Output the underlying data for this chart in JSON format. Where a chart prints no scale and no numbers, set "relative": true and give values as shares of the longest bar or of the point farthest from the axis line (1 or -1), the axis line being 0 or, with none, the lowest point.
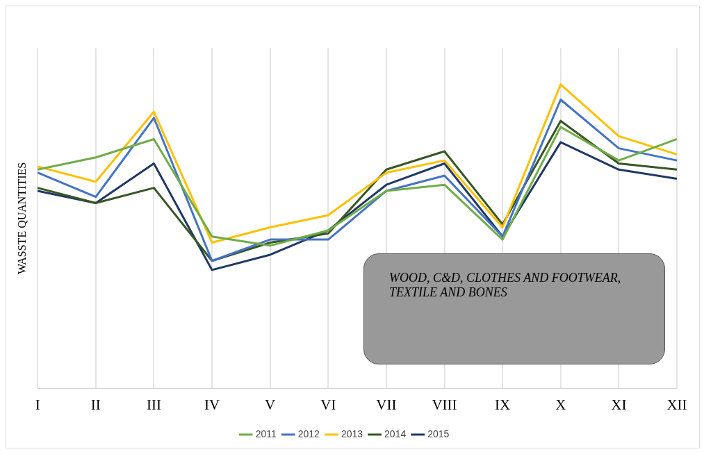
{
  "chart_data": {
    "type": "line",
    "relative": true,
    "ylabel": "WASSTE QUANTITIES",
    "categories": [
      "I",
      "II",
      "III",
      "IV",
      "V",
      "VI",
      "VII",
      "VIII",
      "IX",
      "X",
      "XI",
      "XII"
    ],
    "series": [
      {
        "name": "2011",
        "color": "#70ad47",
        "values": [
          0.72,
          0.76,
          0.82,
          0.5,
          0.47,
          0.52,
          0.65,
          0.67,
          0.49,
          0.86,
          0.75,
          0.82
        ]
      },
      {
        "name": "2012",
        "color": "#4472c4",
        "values": [
          0.71,
          0.63,
          0.89,
          0.42,
          0.49,
          0.49,
          0.65,
          0.7,
          0.5,
          0.95,
          0.79,
          0.75
        ]
      },
      {
        "name": "2013",
        "color": "#ffc000",
        "values": [
          0.73,
          0.68,
          0.91,
          0.48,
          0.53,
          0.57,
          0.71,
          0.75,
          0.53,
          1,
          0.83,
          0.77
        ]
      },
      {
        "name": "2014",
        "color": "#375623",
        "values": [
          0.66,
          0.61,
          0.66,
          0.42,
          0.48,
          0.51,
          0.72,
          0.78,
          0.54,
          0.88,
          0.74,
          0.72
        ]
      },
      {
        "name": "2015",
        "color": "#203864",
        "values": [
          0.65,
          0.61,
          0.74,
          0.39,
          0.44,
          0.52,
          0.67,
          0.74,
          0.5,
          0.81,
          0.72,
          0.69
        ]
      }
    ],
    "annotations": [
      "WOOD, C&D, CLOTHES AND FOOTWEAR, TEXTILE AND BONES"
    ],
    "grid": "x",
    "legend": "bottom",
    "marker": "none",
    "line_style": "solid"
  }
}
